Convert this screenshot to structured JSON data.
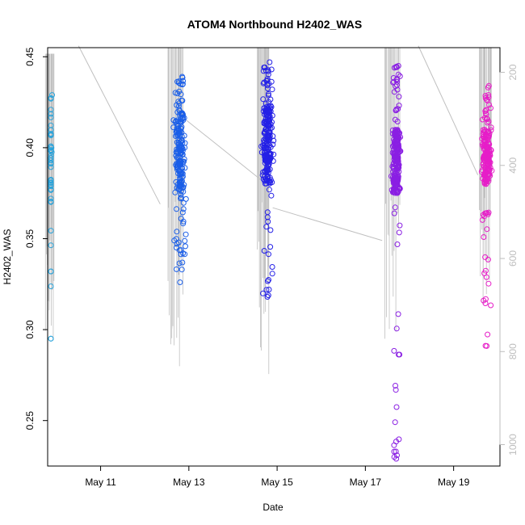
{
  "chart_data": {
    "type": "scatter",
    "title": "ATOM4 Northbound H2402_WAS",
    "xlabel": "Date",
    "ylabel": "H2402_WAS",
    "x_ticks": [
      "May 11",
      "May 13",
      "May 15",
      "May 17",
      "May 19"
    ],
    "x_tick_days": [
      11,
      13,
      15,
      17,
      19
    ],
    "x_domain_days": [
      9.8,
      20.05
    ],
    "ylim": [
      0.225,
      0.455
    ],
    "y_ticks": [
      0.25,
      0.3,
      0.35,
      0.4,
      0.45
    ],
    "y_tick_labels": [
      "0.25",
      "0.30",
      "0.35",
      "0.40",
      "0.45"
    ],
    "y2_ticks": [
      200,
      400,
      600,
      800,
      1000
    ],
    "y2_tick_labels": [
      "200",
      "400",
      "600",
      "800",
      "1000"
    ],
    "y2_range_top_bottom": [
      147,
      1046
    ],
    "grid": false,
    "legend": "none",
    "line_color": "#c0c0c0",
    "axis_color": "#000000",
    "secondary_axis_color": "#bdbdbd",
    "series": [
      {
        "color": "#29a3db",
        "day_center": 9.85,
        "day_spread": 0.06,
        "n": 44,
        "y_main": [
          0.37,
          0.41
        ],
        "y_min": 0.295,
        "y_max": 0.429,
        "spike_x": [
          9.76,
          9.94
        ],
        "alt_range": [
          160,
          800
        ]
      },
      {
        "color": "#1a5ee8",
        "day_center": 12.8,
        "day_spread": 0.17,
        "n": 210,
        "y_main": [
          0.375,
          0.42
        ],
        "y_min": 0.326,
        "y_max": 0.439,
        "spike_x": [
          12.52,
          12.87
        ],
        "alt_range": [
          147,
          840
        ]
      },
      {
        "color": "#2420e6",
        "day_center": 14.78,
        "day_spread": 0.17,
        "n": 230,
        "y_main": [
          0.38,
          0.425
        ],
        "y_min": 0.318,
        "y_max": 0.447,
        "spike_x": [
          14.55,
          14.82
        ],
        "alt_range": [
          147,
          860
        ]
      },
      {
        "color": "#8a1fe3",
        "day_center": 17.7,
        "day_spread": 0.13,
        "n": 250,
        "y_main": [
          0.375,
          0.41
        ],
        "y_min": 0.229,
        "y_max": 0.445,
        "spike_x": [
          17.45,
          17.78
        ],
        "alt_range": [
          147,
          780
        ]
      },
      {
        "color": "#e61ec8",
        "day_center": 19.75,
        "day_spread": 0.15,
        "n": 215,
        "y_main": [
          0.38,
          0.41
        ],
        "y_min": 0.291,
        "y_max": 0.434,
        "spike_x": [
          19.58,
          19.85
        ],
        "alt_range": [
          147,
          730
        ]
      }
    ],
    "connectors_day_y": [
      [
        [
          10.5,
          0.456
        ],
        [
          12.35,
          0.369
        ]
      ],
      [
        [
          12.95,
          0.415
        ],
        [
          14.65,
          0.382
        ]
      ],
      [
        [
          14.9,
          0.367
        ],
        [
          17.38,
          0.349
        ]
      ],
      [
        [
          18.2,
          0.456
        ],
        [
          19.55,
          0.385
        ]
      ]
    ]
  }
}
